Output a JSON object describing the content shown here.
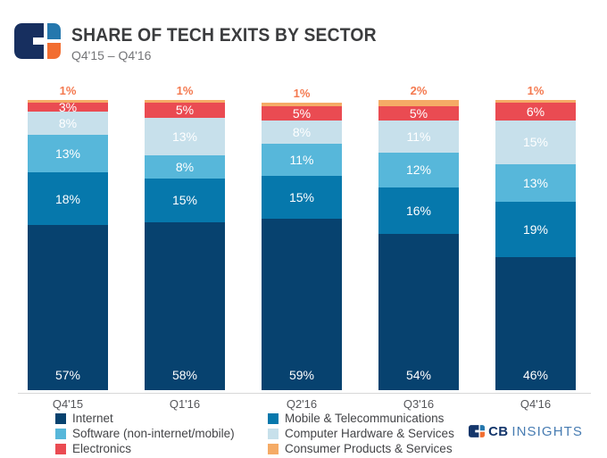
{
  "header": {
    "title": "SHARE OF TECH EXITS BY SECTOR",
    "subtitle": "Q4'15 – Q4'16"
  },
  "brand": {
    "wordmark": {
      "cb": "CB",
      "insights": "INSIGHTS"
    },
    "colors": {
      "logo_navy": "#172F5F",
      "logo_blue": "#2577AD",
      "logo_orange": "#F26E31",
      "wordmark_cb": "#14366B",
      "wordmark_insights": "#477CB2"
    }
  },
  "chart_data": {
    "type": "bar",
    "stacked": true,
    "title": "SHARE OF TECH EXITS BY SECTOR",
    "subtitle": "Q4'15 – Q4'16",
    "xlabel": "",
    "ylabel": "",
    "ylim": [
      0,
      100
    ],
    "grid": false,
    "legend_position": "bottom",
    "value_suffix": "%",
    "categories": [
      "Q4'15",
      "Q1'16",
      "Q2'16",
      "Q3'16",
      "Q4'16"
    ],
    "series": [
      {
        "name": "Internet",
        "color": "#07426F",
        "values": [
          57,
          58,
          59,
          54,
          46
        ]
      },
      {
        "name": "Mobile & Telecommunications",
        "color": "#0678AC",
        "values": [
          18,
          15,
          15,
          16,
          19
        ]
      },
      {
        "name": "Software (non-internet/mobile)",
        "color": "#57B7DA",
        "values": [
          13,
          8,
          11,
          12,
          13
        ]
      },
      {
        "name": "Computer Hardware & Services",
        "color": "#C7E0EB",
        "values": [
          8,
          13,
          8,
          11,
          15
        ]
      },
      {
        "name": "Electronics",
        "color": "#EA4B52",
        "values": [
          3,
          5,
          5,
          5,
          6
        ]
      },
      {
        "name": "Consumer Products & Services",
        "color": "#F5AB66",
        "values": [
          1,
          1,
          1,
          2,
          1
        ]
      }
    ],
    "label_above_series": "Consumer Products & Services",
    "style": {
      "top_label_color": "#F4794F",
      "segment_label_color": "#FFFFFF",
      "axis_label_color": "#55565A",
      "axis_line_color": "#D8D8D8"
    }
  },
  "legend": {
    "column1": [
      "Internet",
      "Software (non-internet/mobile)",
      "Electronics"
    ],
    "column2": [
      "Mobile & Telecommunications",
      "Computer Hardware & Services",
      "Consumer Products & Services"
    ]
  }
}
